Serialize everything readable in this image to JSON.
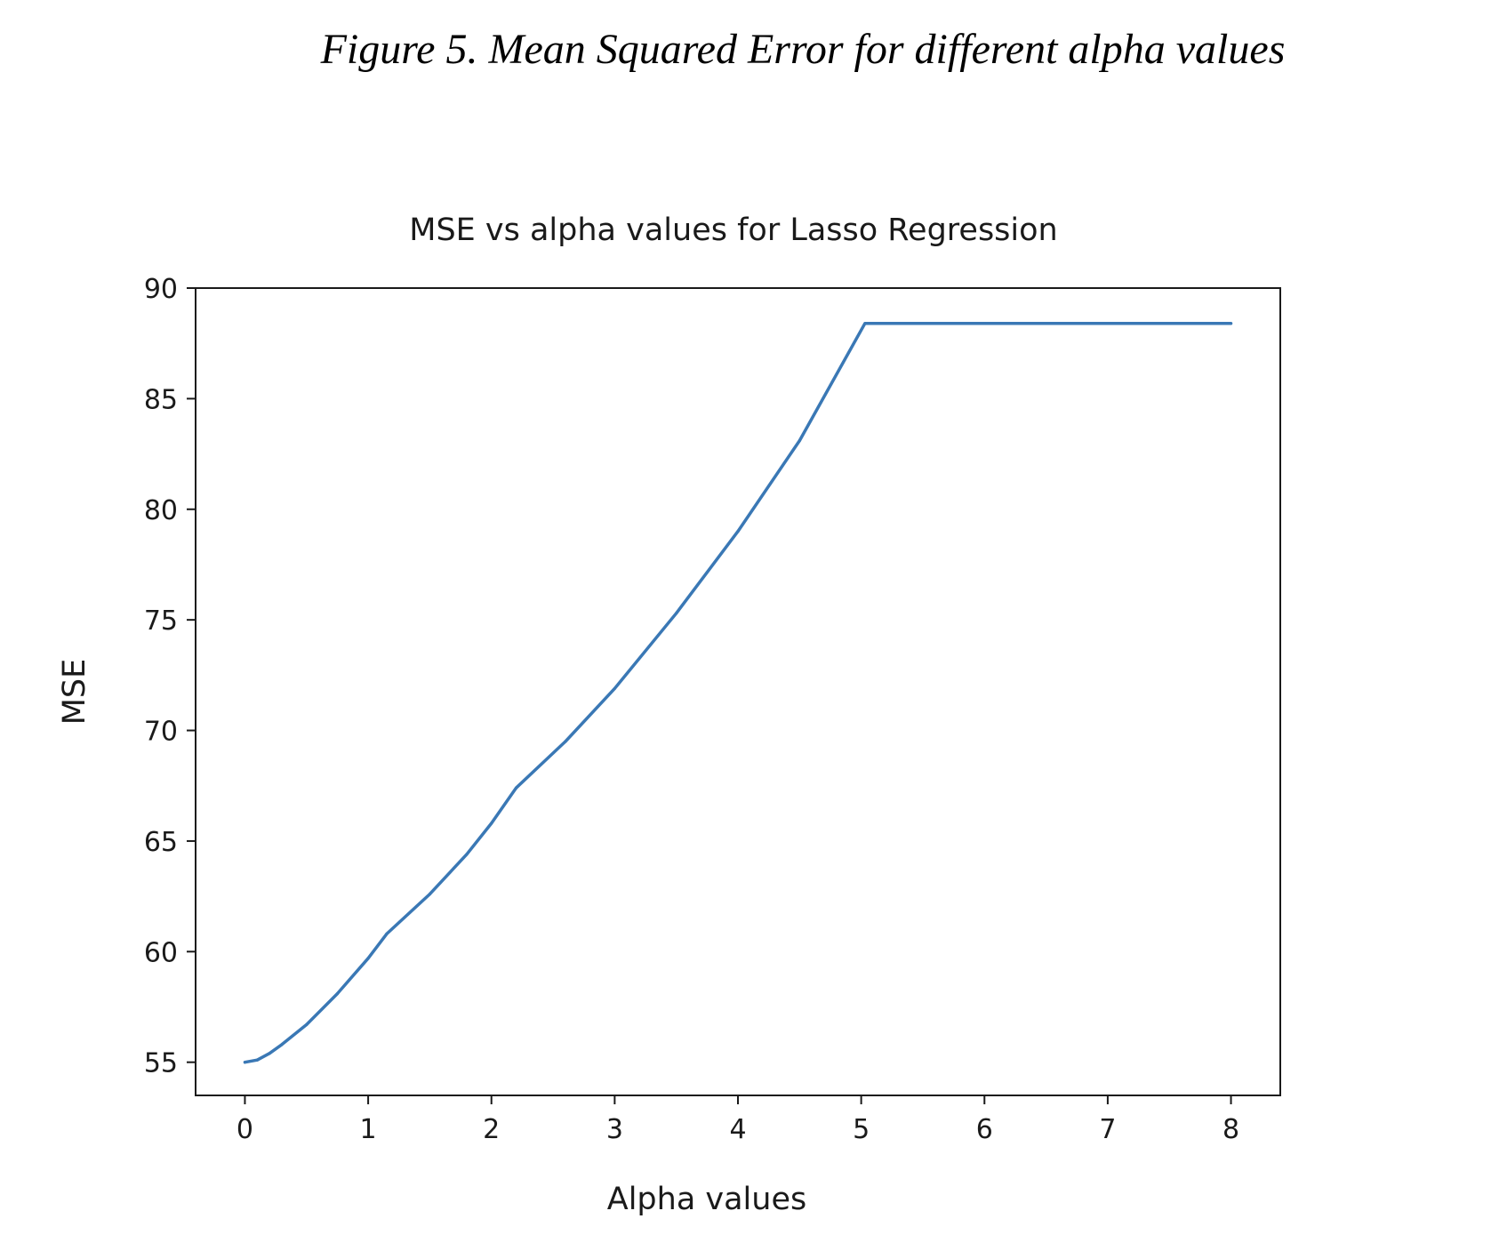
{
  "figure": {
    "caption": "Figure 5. Mean Squared Error for different alpha values"
  },
  "chart_data": {
    "type": "line",
    "title": "MSE vs alpha values for Lasso Regression",
    "xlabel": "Alpha values",
    "ylabel": "MSE",
    "xlim": [
      -0.4,
      8.4
    ],
    "ylim": [
      53.5,
      90
    ],
    "xticks": [
      0,
      1,
      2,
      3,
      4,
      5,
      6,
      7,
      8
    ],
    "yticks": [
      55,
      60,
      65,
      70,
      75,
      80,
      85,
      90
    ],
    "grid": false,
    "line_color": "#3a78b5",
    "series": [
      {
        "x": [
          0,
          0.1,
          0.2,
          0.3,
          0.5,
          0.75,
          1.0,
          1.15,
          1.5,
          1.8,
          2.0,
          2.2,
          2.6,
          3.0,
          3.5,
          4.0,
          4.5,
          5.03,
          5.5,
          6,
          7,
          8
        ],
        "values": [
          55.0,
          55.1,
          55.4,
          55.8,
          56.7,
          58.1,
          59.7,
          60.8,
          62.6,
          64.4,
          65.8,
          67.4,
          69.5,
          71.9,
          75.3,
          79.0,
          83.1,
          88.4,
          88.4,
          88.4,
          88.4,
          88.4
        ]
      }
    ]
  }
}
